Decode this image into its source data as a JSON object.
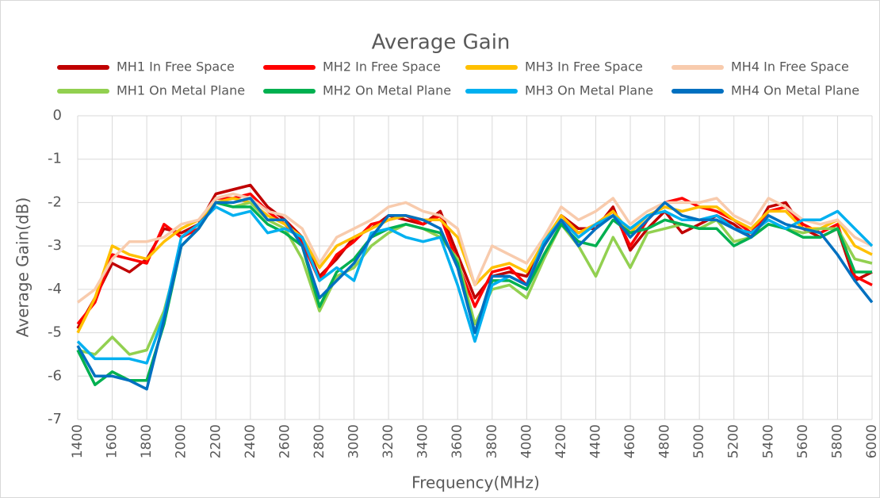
{
  "chart_data": {
    "type": "line",
    "title": "Average Gain",
    "x_label": "Frequency(MHz)",
    "y_label": "Average Gain(dB)",
    "x": [
      1400,
      1500,
      1600,
      1700,
      1800,
      1900,
      2000,
      2100,
      2200,
      2300,
      2400,
      2500,
      2600,
      2700,
      2800,
      2900,
      3000,
      3100,
      3200,
      3300,
      3400,
      3500,
      3600,
      3700,
      3800,
      3900,
      4000,
      4100,
      4200,
      4300,
      4400,
      4500,
      4600,
      4700,
      4800,
      4900,
      5000,
      5100,
      5200,
      5300,
      5400,
      5500,
      5600,
      5700,
      5800,
      5900,
      6000
    ],
    "series": [
      {
        "name": "MH1 In Free Space",
        "color": "#c00000",
        "values": [
          -4.9,
          -4.2,
          -3.4,
          -3.6,
          -3.3,
          -2.6,
          -2.7,
          -2.5,
          -1.8,
          -1.7,
          -1.6,
          -2.1,
          -2.4,
          -2.8,
          -3.7,
          -3.3,
          -2.8,
          -2.6,
          -2.3,
          -2.4,
          -2.5,
          -2.2,
          -3.2,
          -4.2,
          -3.7,
          -3.6,
          -3.7,
          -3.0,
          -2.3,
          -2.6,
          -2.6,
          -2.1,
          -3.1,
          -2.6,
          -2.2,
          -2.7,
          -2.5,
          -2.3,
          -2.5,
          -2.8,
          -2.1,
          -2.0,
          -2.6,
          -2.8,
          -2.6,
          -3.8,
          -3.6
        ]
      },
      {
        "name": "MH2 In Free Space",
        "color": "#ff0000",
        "values": [
          -4.8,
          -4.3,
          -3.2,
          -3.3,
          -3.4,
          -2.5,
          -2.8,
          -2.6,
          -1.9,
          -1.9,
          -1.8,
          -2.2,
          -2.5,
          -2.9,
          -3.8,
          -3.2,
          -2.9,
          -2.5,
          -2.4,
          -2.3,
          -2.5,
          -2.3,
          -3.4,
          -4.4,
          -3.6,
          -3.5,
          -3.9,
          -3.0,
          -2.4,
          -2.7,
          -2.5,
          -2.2,
          -3.0,
          -2.4,
          -2.0,
          -1.9,
          -2.1,
          -2.2,
          -2.4,
          -2.7,
          -2.2,
          -2.1,
          -2.5,
          -2.7,
          -2.5,
          -3.7,
          -3.9
        ]
      },
      {
        "name": "MH3 In Free Space",
        "color": "#ffc000",
        "values": [
          -5.0,
          -4.2,
          -3.0,
          -3.2,
          -3.3,
          -2.9,
          -2.6,
          -2.4,
          -2.0,
          -1.9,
          -2.0,
          -2.3,
          -2.5,
          -2.8,
          -3.5,
          -3.0,
          -2.8,
          -2.6,
          -2.4,
          -2.3,
          -2.4,
          -2.4,
          -2.8,
          -3.9,
          -3.5,
          -3.4,
          -3.6,
          -2.9,
          -2.3,
          -2.7,
          -2.5,
          -2.2,
          -2.7,
          -2.3,
          -2.1,
          -2.2,
          -2.1,
          -2.1,
          -2.4,
          -2.6,
          -2.2,
          -2.2,
          -2.6,
          -2.6,
          -2.4,
          -3.0,
          -3.2
        ]
      },
      {
        "name": "MH4 In Free Space",
        "color": "#f8cbad",
        "values": [
          -4.3,
          -4.0,
          -3.3,
          -2.9,
          -2.9,
          -2.8,
          -2.5,
          -2.4,
          -1.9,
          -1.8,
          -1.9,
          -2.2,
          -2.3,
          -2.6,
          -3.4,
          -2.8,
          -2.6,
          -2.4,
          -2.1,
          -2.0,
          -2.2,
          -2.3,
          -2.6,
          -3.9,
          -3.0,
          -3.2,
          -3.4,
          -2.8,
          -2.1,
          -2.4,
          -2.2,
          -1.9,
          -2.5,
          -2.2,
          -2.0,
          -2.0,
          -2.0,
          -1.9,
          -2.3,
          -2.5,
          -1.9,
          -2.1,
          -2.4,
          -2.5,
          -2.4,
          -2.8,
          -3.0
        ]
      },
      {
        "name": "MH1 On Metal Plane",
        "color": "#92d050",
        "values": [
          -5.4,
          -5.5,
          -5.1,
          -5.5,
          -5.4,
          -4.5,
          -3.0,
          -2.6,
          -2.0,
          -2.1,
          -2.0,
          -2.4,
          -2.6,
          -3.3,
          -4.5,
          -3.7,
          -3.5,
          -3.0,
          -2.7,
          -2.5,
          -2.6,
          -2.8,
          -3.3,
          -4.8,
          -4.0,
          -3.9,
          -4.2,
          -3.3,
          -2.5,
          -3.0,
          -3.7,
          -2.8,
          -3.5,
          -2.7,
          -2.6,
          -2.5,
          -2.6,
          -2.4,
          -2.9,
          -2.8,
          -2.5,
          -2.6,
          -2.7,
          -2.6,
          -2.6,
          -3.3,
          -3.4
        ]
      },
      {
        "name": "MH2 On Metal Plane",
        "color": "#00b050",
        "values": [
          -5.4,
          -6.2,
          -5.9,
          -6.1,
          -6.1,
          -4.8,
          -3.0,
          -2.6,
          -2.0,
          -2.1,
          -2.1,
          -2.5,
          -2.7,
          -3.0,
          -4.4,
          -3.6,
          -3.3,
          -2.8,
          -2.6,
          -2.5,
          -2.6,
          -2.7,
          -3.4,
          -5.0,
          -3.8,
          -3.8,
          -4.0,
          -3.2,
          -2.5,
          -2.9,
          -3.0,
          -2.4,
          -2.7,
          -2.6,
          -2.4,
          -2.5,
          -2.6,
          -2.6,
          -3.0,
          -2.8,
          -2.5,
          -2.6,
          -2.8,
          -2.8,
          -2.6,
          -3.6,
          -3.6
        ]
      },
      {
        "name": "MH3 On Metal Plane",
        "color": "#00b0f0",
        "values": [
          -5.2,
          -5.6,
          -5.6,
          -5.6,
          -5.7,
          -4.6,
          -2.8,
          -2.5,
          -2.1,
          -2.3,
          -2.2,
          -2.7,
          -2.6,
          -2.8,
          -3.8,
          -3.5,
          -3.8,
          -2.7,
          -2.6,
          -2.8,
          -2.9,
          -2.8,
          -3.9,
          -5.2,
          -3.9,
          -3.7,
          -3.9,
          -2.9,
          -2.4,
          -2.8,
          -2.5,
          -2.3,
          -2.6,
          -2.3,
          -2.2,
          -2.4,
          -2.4,
          -2.3,
          -2.6,
          -2.7,
          -2.4,
          -2.6,
          -2.4,
          -2.4,
          -2.2,
          -2.6,
          -3.0
        ]
      },
      {
        "name": "MH4 On Metal Plane",
        "color": "#0070c0",
        "values": [
          -5.3,
          -6.0,
          -6.0,
          -6.1,
          -6.3,
          -4.7,
          -3.0,
          -2.6,
          -2.0,
          -2.0,
          -1.9,
          -2.4,
          -2.4,
          -3.0,
          -4.2,
          -3.8,
          -3.4,
          -2.8,
          -2.3,
          -2.3,
          -2.4,
          -2.6,
          -3.5,
          -5.0,
          -3.7,
          -3.7,
          -3.9,
          -3.0,
          -2.4,
          -3.0,
          -2.6,
          -2.3,
          -2.8,
          -2.4,
          -2.0,
          -2.3,
          -2.4,
          -2.4,
          -2.6,
          -2.8,
          -2.3,
          -2.5,
          -2.6,
          -2.7,
          -3.2,
          -3.8,
          -4.3
        ]
      }
    ],
    "xlim": [
      1400,
      6000
    ],
    "xticks": [
      1400,
      1600,
      1800,
      2000,
      2200,
      2400,
      2600,
      2800,
      3000,
      3200,
      3400,
      3600,
      3800,
      4000,
      4200,
      4400,
      4600,
      4800,
      5000,
      5200,
      5400,
      5600,
      5800,
      6000
    ],
    "ylim": [
      -7,
      0
    ],
    "yticks": [
      -7,
      -6,
      -5,
      -4,
      -3,
      -2,
      -1,
      0
    ],
    "grid": true
  }
}
